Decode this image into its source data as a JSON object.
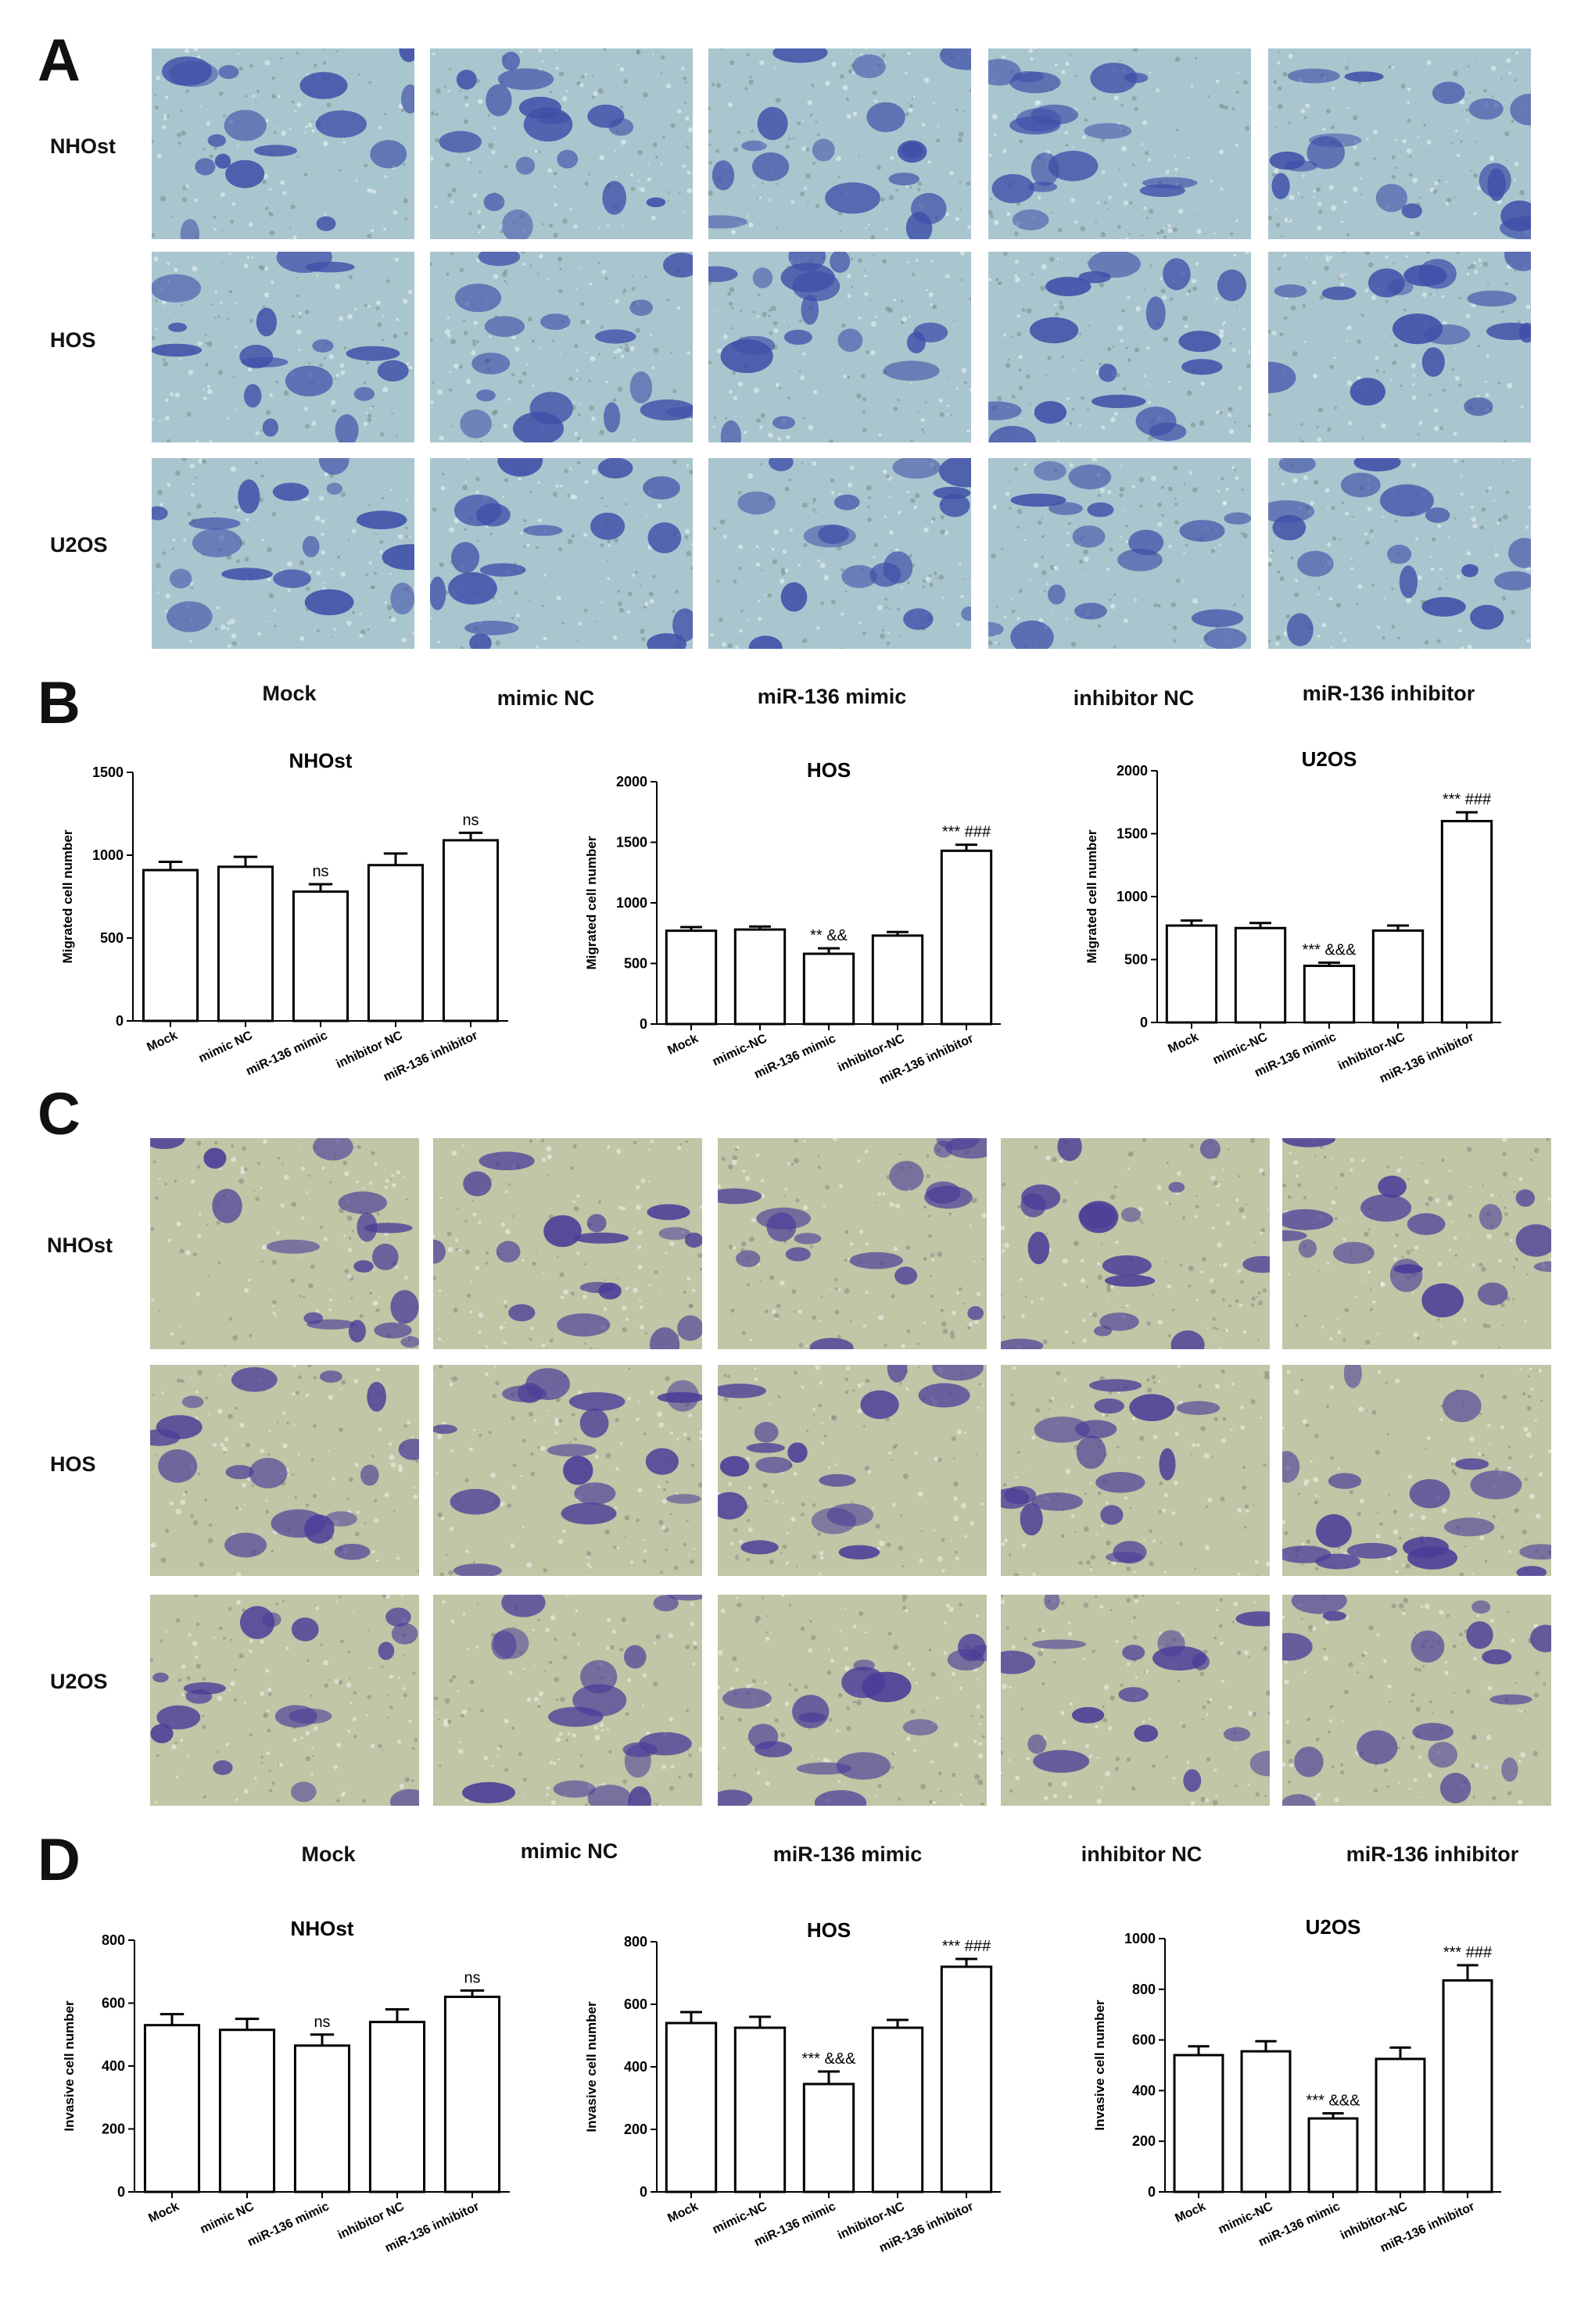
{
  "panels": {
    "A": "A",
    "B": "B",
    "C": "C",
    "D": "D"
  },
  "row_labels": [
    "NHOst",
    "HOS",
    "U2OS"
  ],
  "column_headers": [
    "Mock",
    "mimic NC",
    "miR-136 mimic",
    "inhibitor NC",
    "miR-136 inhibitor"
  ],
  "colors": {
    "migration_bg": "#a9c6cf",
    "migration_cell": "#3f4fa8",
    "invasion_bg": "#c2c5a6",
    "invasion_cell": "#4b3c98",
    "bar_fill": "#ffffff",
    "bar_stroke": "#000000"
  },
  "chart_data": [
    {
      "id": "B-NHOst",
      "type": "bar",
      "title": "NHOst",
      "xlabel": "",
      "ylabel": "Migrated cell number",
      "categories": [
        "Mock",
        "mimic NC",
        "miR-136 mimic",
        "inhibitor NC",
        "miR-136 inhibitor"
      ],
      "values": [
        910,
        930,
        780,
        940,
        1090
      ],
      "errors": [
        50,
        60,
        45,
        70,
        45
      ],
      "annotations": [
        "",
        "",
        "ns",
        "",
        "ns"
      ],
      "ylim": [
        0,
        1500
      ],
      "yticks": [
        0,
        500,
        1000,
        1500
      ],
      "grid": false
    },
    {
      "id": "B-HOS",
      "type": "bar",
      "title": "HOS",
      "xlabel": "",
      "ylabel": "Migrated cell number",
      "categories": [
        "Mock",
        "mimic-NC",
        "miR-136 mimic",
        "inhibitor-NC",
        "miR-136 inhibitor"
      ],
      "values": [
        770,
        780,
        580,
        730,
        1430
      ],
      "errors": [
        30,
        25,
        45,
        30,
        50
      ],
      "annotations": [
        "",
        "",
        "** &&",
        "",
        "*** ###"
      ],
      "ylim": [
        0,
        2000
      ],
      "yticks": [
        0,
        500,
        1000,
        1500,
        2000
      ],
      "grid": false
    },
    {
      "id": "B-U2OS",
      "type": "bar",
      "title": "U2OS",
      "xlabel": "",
      "ylabel": "Migrated cell number",
      "categories": [
        "Mock",
        "mimic-NC",
        "miR-136 mimic",
        "inhibitor-NC",
        "miR-136 inhibitor"
      ],
      "values": [
        770,
        750,
        450,
        730,
        1600
      ],
      "errors": [
        40,
        40,
        25,
        40,
        70
      ],
      "annotations": [
        "",
        "",
        "*** &&&",
        "",
        "*** ###"
      ],
      "ylim": [
        0,
        2000
      ],
      "yticks": [
        0,
        500,
        1000,
        1500,
        2000
      ],
      "grid": false
    },
    {
      "id": "D-NHOst",
      "type": "bar",
      "title": "NHOst",
      "xlabel": "",
      "ylabel": "Invasive cell number",
      "categories": [
        "Mock",
        "mimic NC",
        "miR-136 mimic",
        "inhibitor NC",
        "miR-136 inhibitor"
      ],
      "values": [
        530,
        515,
        465,
        540,
        620
      ],
      "errors": [
        35,
        35,
        35,
        40,
        20
      ],
      "annotations": [
        "",
        "",
        "ns",
        "",
        "ns"
      ],
      "ylim": [
        0,
        800
      ],
      "yticks": [
        0,
        200,
        400,
        600,
        800
      ],
      "grid": false
    },
    {
      "id": "D-HOS",
      "type": "bar",
      "title": "HOS",
      "xlabel": "",
      "ylabel": "Invasive cell number",
      "categories": [
        "Mock",
        "mimic-NC",
        "miR-136 mimic",
        "inhibitor-NC",
        "miR-136 inhibitor"
      ],
      "values": [
        540,
        525,
        345,
        525,
        720
      ],
      "errors": [
        35,
        35,
        40,
        25,
        25
      ],
      "annotations": [
        "",
        "",
        "*** &&&",
        "",
        "*** ###"
      ],
      "ylim": [
        0,
        800
      ],
      "yticks": [
        0,
        200,
        400,
        600,
        800
      ],
      "grid": false
    },
    {
      "id": "D-U2OS",
      "type": "bar",
      "title": "U2OS",
      "xlabel": "",
      "ylabel": "Invasive cell number",
      "categories": [
        "Mock",
        "mimic-NC",
        "miR-136 mimic",
        "inhibitor-NC",
        "miR-136 inhibitor"
      ],
      "values": [
        540,
        555,
        290,
        525,
        835
      ],
      "errors": [
        35,
        40,
        20,
        45,
        60
      ],
      "annotations": [
        "",
        "",
        "*** &&&",
        "",
        "*** ###"
      ],
      "ylim": [
        0,
        1000
      ],
      "yticks": [
        0,
        200,
        400,
        600,
        800,
        1000
      ],
      "grid": false
    }
  ]
}
